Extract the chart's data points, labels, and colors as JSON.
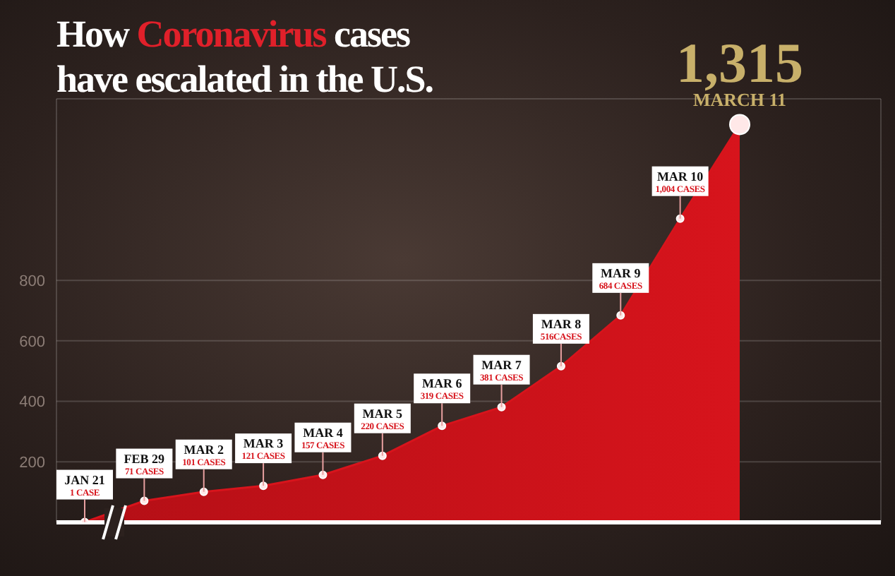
{
  "chart_data": {
    "type": "area",
    "title": "How Coronavirus cases have escalated in the U.S.",
    "categories": [
      "JAN 21",
      "FEB 29",
      "MAR 2",
      "MAR 3",
      "MAR 4",
      "MAR 5",
      "MAR 6",
      "MAR 7",
      "MAR 8",
      "MAR 9",
      "MAR 10",
      "MARCH 11"
    ],
    "values": [
      1,
      71,
      101,
      121,
      157,
      220,
      319,
      381,
      516,
      684,
      1004,
      1315
    ],
    "value_labels": [
      "1 CASE",
      "71 CASES",
      "101 CASES",
      "121 CASES",
      "157 CASES",
      "220 CASES",
      "319 CASES",
      "381 CASES",
      "516CASES",
      "684 CASES",
      "1,004 CASES",
      "1,315"
    ],
    "color": "#d7141c",
    "ylim": [
      0,
      1400
    ],
    "yticks": [
      200,
      400,
      600,
      800
    ],
    "grid": true,
    "tick_labels": "y",
    "marker": "circle"
  }
}
